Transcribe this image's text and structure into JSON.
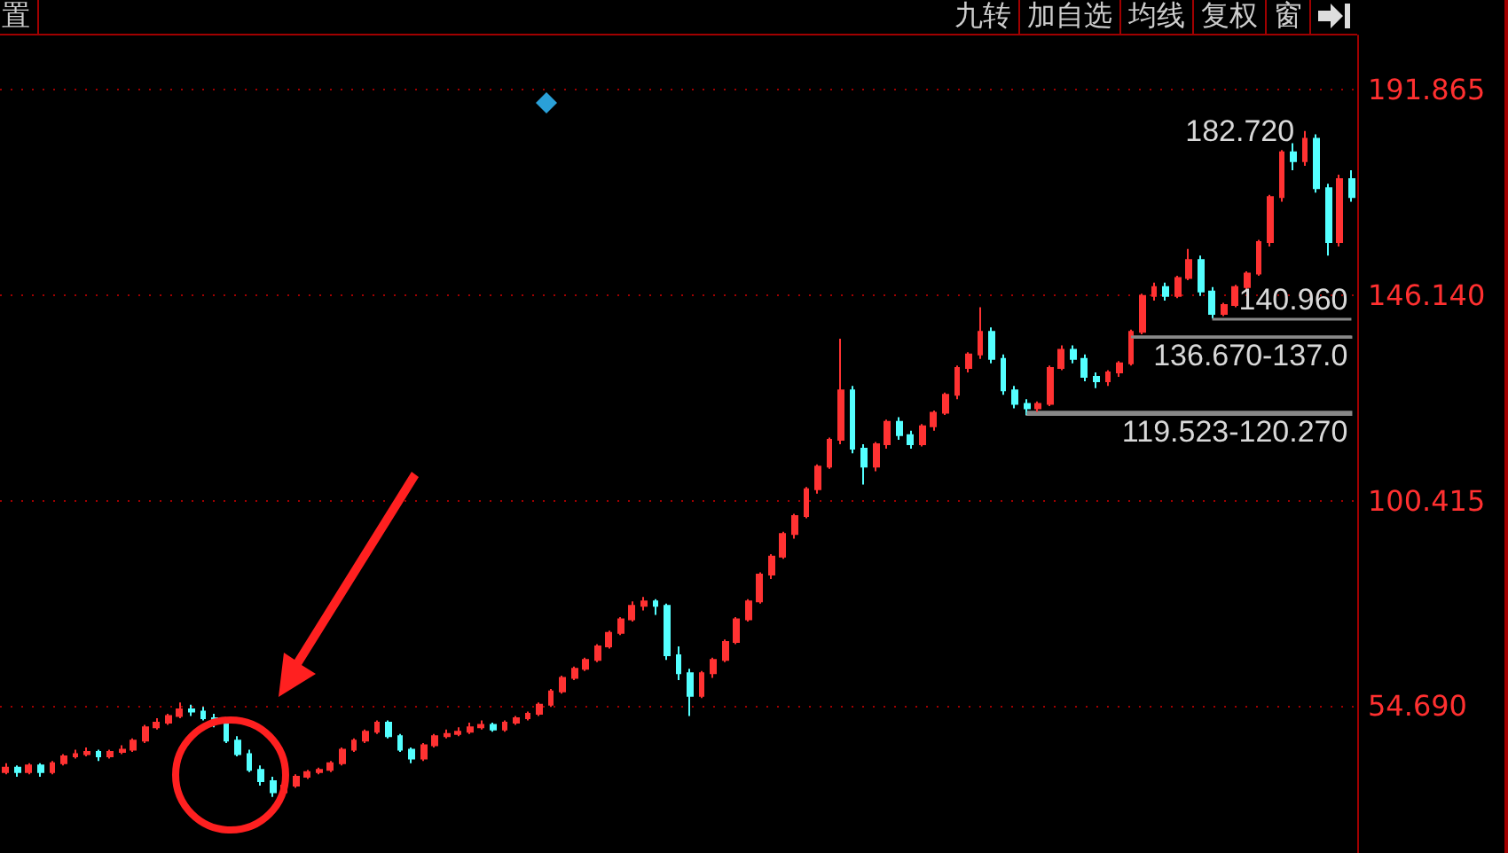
{
  "chart_data": {
    "type": "candlestick",
    "categories": [
      null,
      null,
      null,
      null,
      null,
      null,
      null,
      null,
      null,
      null,
      null,
      null,
      null,
      null,
      null,
      null,
      null,
      null,
      null,
      null,
      null,
      null,
      null,
      null,
      null,
      null,
      null,
      null,
      null,
      null,
      null,
      null,
      null,
      null,
      null,
      null,
      null,
      null,
      null,
      null,
      null,
      null,
      null,
      null,
      null,
      null,
      null,
      null,
      null,
      null,
      null,
      null,
      null,
      null,
      null,
      null,
      null,
      null,
      null,
      null,
      null,
      null,
      null,
      null,
      null,
      null,
      null,
      null,
      null,
      null,
      null,
      null,
      null,
      null,
      null,
      null,
      null,
      null,
      null,
      null,
      null,
      null,
      null,
      null,
      null,
      null,
      null,
      null,
      null,
      null,
      null,
      null,
      null,
      null,
      null,
      null,
      null,
      null,
      null,
      null,
      null,
      null,
      null,
      null,
      null,
      null,
      null,
      null,
      null,
      null,
      null,
      null,
      null,
      null,
      null,
      null,
      null
    ],
    "ohlc": [
      [
        40,
        42,
        39.5,
        41
      ],
      [
        41,
        41.5,
        39,
        40
      ],
      [
        40,
        42,
        39.5,
        41.5
      ],
      [
        41.5,
        42,
        39,
        40
      ],
      [
        40,
        42.5,
        39.5,
        42
      ],
      [
        42,
        44,
        41.5,
        43.5
      ],
      [
        43.5,
        45,
        43,
        44
      ],
      [
        44,
        45.5,
        43.5,
        44.5
      ],
      [
        44.5,
        45,
        42.5,
        43.5
      ],
      [
        43.5,
        45,
        43,
        44.5
      ],
      [
        44.5,
        46,
        44,
        45
      ],
      [
        45,
        47.5,
        44.5,
        47
      ],
      [
        47,
        50.5,
        46.5,
        50
      ],
      [
        50,
        52,
        49.5,
        51
      ],
      [
        51,
        53,
        50.5,
        52.5
      ],
      [
        52.5,
        55.5,
        52,
        54
      ],
      [
        54,
        55,
        52.5,
        53.5
      ],
      [
        53.5,
        54.5,
        51.5,
        52
      ],
      [
        52,
        53,
        50,
        51
      ],
      [
        51,
        51.5,
        46.5,
        47
      ],
      [
        47,
        48,
        43.5,
        44
      ],
      [
        44,
        45,
        40,
        40.5
      ],
      [
        40.5,
        41.5,
        37,
        38
      ],
      [
        38,
        39,
        34.5,
        35.5
      ],
      [
        35.5,
        38,
        35,
        37
      ],
      [
        37,
        39.5,
        36.5,
        39
      ],
      [
        39,
        40.5,
        38.5,
        40
      ],
      [
        40,
        41,
        39.5,
        40.5
      ],
      [
        40.5,
        42.5,
        40,
        42
      ],
      [
        42,
        45.5,
        41.5,
        45
      ],
      [
        45,
        47.5,
        44.5,
        47
      ],
      [
        47,
        49.5,
        46.5,
        49
      ],
      [
        49,
        51.5,
        48.5,
        51
      ],
      [
        51,
        51.5,
        47.5,
        48
      ],
      [
        48,
        48.5,
        44.5,
        45
      ],
      [
        45,
        45.5,
        42,
        43
      ],
      [
        43,
        46.5,
        42.5,
        46
      ],
      [
        46,
        48.5,
        45.5,
        48
      ],
      [
        48,
        49.5,
        47.5,
        48.5
      ],
      [
        48.5,
        50,
        48,
        49
      ],
      [
        49,
        51,
        48.5,
        50
      ],
      [
        50,
        51.5,
        49.5,
        50.5
      ],
      [
        50.5,
        51,
        49,
        49.5
      ],
      [
        49.5,
        51.5,
        49,
        51
      ],
      [
        51,
        52.5,
        50.5,
        52
      ],
      [
        52,
        53.5,
        51.5,
        53
      ],
      [
        53,
        55.5,
        52.5,
        55
      ],
      [
        55,
        58.5,
        54.5,
        58
      ],
      [
        58,
        61.5,
        57.5,
        61
      ],
      [
        61,
        63.5,
        60.5,
        63
      ],
      [
        63,
        65.5,
        62.5,
        65
      ],
      [
        65,
        68.5,
        64.5,
        68
      ],
      [
        68,
        71.5,
        67.5,
        71
      ],
      [
        71,
        74.5,
        70.5,
        74
      ],
      [
        74,
        78,
        73.5,
        77
      ],
      [
        77,
        79,
        76,
        78
      ],
      [
        78,
        78.5,
        75,
        77
      ],
      [
        77,
        77.5,
        65,
        66
      ],
      [
        66,
        68,
        60.5,
        62
      ],
      [
        62,
        63,
        52.5,
        57
      ],
      [
        57,
        62.5,
        56.5,
        62
      ],
      [
        62,
        65.5,
        61,
        65
      ],
      [
        65,
        69.5,
        64.5,
        69
      ],
      [
        69,
        74.5,
        68.5,
        74
      ],
      [
        74,
        78.5,
        73.5,
        78
      ],
      [
        78,
        84.5,
        77.5,
        84
      ],
      [
        84,
        88.5,
        83,
        88
      ],
      [
        88,
        93.5,
        87.5,
        93
      ],
      [
        93,
        97.5,
        92,
        97
      ],
      [
        97,
        103.5,
        96.5,
        103
      ],
      [
        103,
        108.5,
        102,
        108
      ],
      [
        108,
        114.5,
        107.5,
        114
      ],
      [
        114,
        136.5,
        113,
        125
      ],
      [
        125,
        126,
        111,
        112
      ],
      [
        112,
        113,
        104,
        108
      ],
      [
        108,
        113.5,
        107,
        113
      ],
      [
        113,
        118.5,
        112,
        118
      ],
      [
        118,
        119,
        114,
        115
      ],
      [
        115,
        116,
        112,
        113
      ],
      [
        113,
        117.5,
        112.5,
        117
      ],
      [
        117,
        120.5,
        116,
        120
      ],
      [
        120,
        124.5,
        119.5,
        124
      ],
      [
        124,
        130.5,
        123,
        130
      ],
      [
        130,
        133.5,
        129,
        133
      ],
      [
        133,
        143.5,
        132,
        138
      ],
      [
        138,
        139,
        131,
        132
      ],
      [
        132,
        133,
        124,
        125
      ],
      [
        125,
        126,
        121,
        122
      ],
      [
        122,
        123,
        119.5,
        121
      ],
      [
        121,
        122.5,
        120,
        122
      ],
      [
        122,
        130.5,
        121.5,
        130
      ],
      [
        130,
        135,
        129.5,
        134
      ],
      [
        134,
        135,
        131,
        132
      ],
      [
        132,
        133,
        127,
        128
      ],
      [
        128,
        129,
        125.5,
        127
      ],
      [
        127,
        129.5,
        126,
        129
      ],
      [
        129,
        131.5,
        128,
        131
      ],
      [
        131,
        138.5,
        130.5,
        138
      ],
      [
        138,
        146.5,
        137.5,
        146
      ],
      [
        146,
        149,
        145,
        148
      ],
      [
        148,
        149,
        145,
        146
      ],
      [
        146,
        150.5,
        145.5,
        150
      ],
      [
        150,
        156.5,
        149.5,
        154
      ],
      [
        154,
        155,
        146,
        147
      ],
      [
        147,
        148,
        140.96,
        142
      ],
      [
        142,
        144.5,
        141.5,
        144
      ],
      [
        144,
        148.5,
        143.5,
        148
      ],
      [
        148,
        151.5,
        147,
        151
      ],
      [
        151,
        158.5,
        150.5,
        158
      ],
      [
        158,
        168.5,
        157,
        168
      ],
      [
        168,
        178.5,
        167,
        178
      ],
      [
        178,
        180,
        174,
        176
      ],
      [
        176,
        182.72,
        175,
        181
      ],
      [
        181,
        182,
        169,
        170
      ],
      [
        170,
        171,
        155,
        158
      ],
      [
        158,
        173,
        157,
        172
      ],
      [
        172,
        174,
        167,
        168
      ]
    ],
    "colors": [
      "#ff3232",
      "#54ffff",
      "#ff3232",
      "#54ffff",
      "#ff3232",
      "#ff3232",
      "#ff3232",
      "#ff3232",
      "#54ffff",
      "#ff3232",
      "#ff3232",
      "#ff3232",
      "#ff3232",
      "#ff3232",
      "#ff3232",
      "#ff3232",
      "#54ffff",
      "#54ffff",
      "#54ffff",
      "#54ffff",
      "#54ffff",
      "#54ffff",
      "#54ffff",
      "#54ffff",
      "#ff3232",
      "#ff3232",
      "#ff3232",
      "#ff3232",
      "#ff3232",
      "#ff3232",
      "#ff3232",
      "#ff3232",
      "#ff3232",
      "#54ffff",
      "#54ffff",
      "#54ffff",
      "#ff3232",
      "#ff3232",
      "#ff3232",
      "#ff3232",
      "#ff3232",
      "#ff3232",
      "#54ffff",
      "#ff3232",
      "#ff3232",
      "#ff3232",
      "#ff3232",
      "#ff3232",
      "#ff3232",
      "#ff3232",
      "#ff3232",
      "#ff3232",
      "#ff3232",
      "#ff3232",
      "#ff3232",
      "#ff3232",
      "#54ffff",
      "#54ffff",
      "#54ffff",
      "#54ffff",
      "#ff3232",
      "#ff3232",
      "#ff3232",
      "#ff3232",
      "#ff3232",
      "#ff3232",
      "#ff3232",
      "#ff3232",
      "#ff3232",
      "#ff3232",
      "#ff3232",
      "#ff3232",
      "#ff3232",
      "#54ffff",
      "#54ffff",
      "#ff3232",
      "#ff3232",
      "#54ffff",
      "#54ffff",
      "#ff3232",
      "#ff3232",
      "#ff3232",
      "#ff3232",
      "#ff3232",
      "#ff3232",
      "#54ffff",
      "#54ffff",
      "#54ffff",
      "#54ffff",
      "#ff3232",
      "#ff3232",
      "#ff3232",
      "#54ffff",
      "#54ffff",
      "#54ffff",
      "#ff3232",
      "#ff3232",
      "#ff3232",
      "#ff3232",
      "#ff3232",
      "#54ffff",
      "#ff3232",
      "#ff3232",
      "#54ffff",
      "#54ffff",
      "#ff3232",
      "#ff3232",
      "#ff3232",
      "#ff3232",
      "#ff3232",
      "#ff3232",
      "#54ffff",
      "#ff3232",
      "#54ffff",
      "#54ffff",
      "#ff3232",
      "#54ffff"
    ],
    "ylim": [
      22,
      204
    ],
    "yticks": [
      {
        "value": 54.69,
        "label": "54.690"
      },
      {
        "value": 100.415,
        "label": "100.415"
      },
      {
        "value": 146.14,
        "label": "146.140"
      },
      {
        "value": 191.865,
        "label": "191.865"
      }
    ],
    "grid": "y",
    "tick_labels": "y",
    "ref_lines": [
      {
        "axis": "y",
        "value": 140.96,
        "label": "140.960"
      }
    ],
    "bands": [
      {
        "axis": "y",
        "from": 136.67,
        "to": 137.0,
        "label": "136.670-137.0"
      },
      {
        "axis": "y",
        "from": 119.523,
        "to": 120.27,
        "label": "119.523-120.270"
      }
    ],
    "annotations": [
      "置",
      "九转",
      "加自选",
      "均线",
      "复权",
      "窗",
      "182.720"
    ]
  }
}
